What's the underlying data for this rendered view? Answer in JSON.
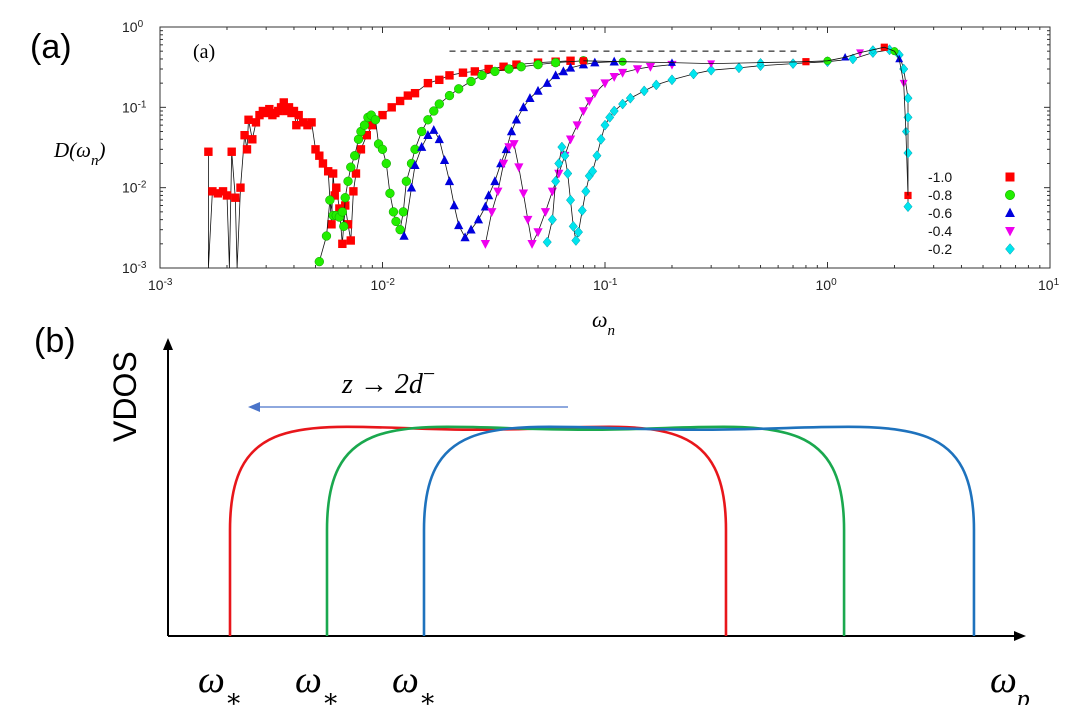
{
  "panel_a_label": "(a)",
  "panel_b_label": "(b)",
  "chart_data": [
    {
      "type": "scatter",
      "panel_label": "(a)",
      "xscale": "log",
      "yscale": "log",
      "xlim": [
        0.001,
        10
      ],
      "ylim": [
        0.001,
        1
      ],
      "xticks": [
        {
          "value": 0.001,
          "base": "10",
          "exp": "-3"
        },
        {
          "value": 0.01,
          "base": "10",
          "exp": "-2"
        },
        {
          "value": 0.1,
          "base": "10",
          "exp": "-1"
        },
        {
          "value": 1,
          "base": "10",
          "exp": "0"
        },
        {
          "value": 10,
          "base": "10",
          "exp": "1"
        }
      ],
      "yticks": [
        {
          "value": 0.001,
          "base": "10",
          "exp": "-3"
        },
        {
          "value": 0.01,
          "base": "10",
          "exp": "-2"
        },
        {
          "value": 0.1,
          "base": "10",
          "exp": "-1"
        },
        {
          "value": 1,
          "base": "10",
          "exp": "0"
        }
      ],
      "xlabel": {
        "main": "ω",
        "sub": "n"
      },
      "ylabel": {
        "main": "D(ω",
        "sub": "n",
        "close": ")"
      },
      "plateau_line": {
        "x": [
          0.02,
          0.75
        ],
        "y": 0.5,
        "style": "dashed"
      },
      "legend_position": "right",
      "series": [
        {
          "name": "-1.0",
          "color": "#ff0000",
          "marker": "square",
          "points": [
            [
              0.00165,
              0.028
            ],
            [
              0.00165,
              0.001
            ],
            [
              0.00172,
              0.009
            ],
            [
              0.00182,
              0.0085
            ],
            [
              0.00192,
              0.009
            ],
            [
              0.002,
              0.008
            ],
            [
              0.00205,
              0.001
            ],
            [
              0.0021,
              0.028
            ],
            [
              0.00218,
              0.0075
            ],
            [
              0.00222,
              0.001
            ],
            [
              0.0023,
              0.01
            ],
            [
              0.0024,
              0.045
            ],
            [
              0.00246,
              0.03
            ],
            [
              0.0025,
              0.07
            ],
            [
              0.0026,
              0.04
            ],
            [
              0.0027,
              0.065
            ],
            [
              0.0028,
              0.08
            ],
            [
              0.0029,
              0.09
            ],
            [
              0.003,
              0.085
            ],
            [
              0.0031,
              0.095
            ],
            [
              0.0032,
              0.08
            ],
            [
              0.0033,
              0.085
            ],
            [
              0.0034,
              0.09
            ],
            [
              0.0035,
              0.1
            ],
            [
              0.0036,
              0.115
            ],
            [
              0.0037,
              0.09
            ],
            [
              0.0038,
              0.1
            ],
            [
              0.0039,
              0.085
            ],
            [
              0.004,
              0.09
            ],
            [
              0.0041,
              0.06
            ],
            [
              0.0042,
              0.08
            ],
            [
              0.0044,
              0.065
            ],
            [
              0.0046,
              0.06
            ],
            [
              0.0048,
              0.065
            ],
            [
              0.005,
              0.03
            ],
            [
              0.0052,
              0.025
            ],
            [
              0.0054,
              0.02
            ],
            [
              0.0057,
              0.016
            ],
            [
              0.0059,
              0.0035
            ],
            [
              0.006,
              0.015
            ],
            [
              0.0061,
              0.008
            ],
            [
              0.0062,
              0.01
            ],
            [
              0.0064,
              0.0055
            ],
            [
              0.0066,
              0.002
            ],
            [
              0.0068,
              0.006
            ],
            [
              0.007,
              0.0035
            ],
            [
              0.0072,
              0.0022
            ],
            [
              0.0074,
              0.009
            ],
            [
              0.0076,
              0.015
            ],
            [
              0.008,
              0.03
            ],
            [
              0.0085,
              0.045
            ],
            [
              0.009,
              0.06
            ],
            [
              0.01,
              0.08
            ],
            [
              0.011,
              0.1
            ],
            [
              0.012,
              0.12
            ],
            [
              0.013,
              0.14
            ],
            [
              0.014,
              0.15
            ],
            [
              0.016,
              0.2
            ],
            [
              0.018,
              0.22
            ],
            [
              0.02,
              0.25
            ],
            [
              0.023,
              0.27
            ],
            [
              0.026,
              0.28
            ],
            [
              0.03,
              0.3
            ],
            [
              0.035,
              0.32
            ],
            [
              0.04,
              0.34
            ],
            [
              0.05,
              0.36
            ],
            [
              0.06,
              0.37
            ],
            [
              0.07,
              0.38
            ]
          ]
        },
        {
          "name": "-0.8",
          "color": "#22ee00",
          "marker": "circle",
          "points": [
            [
              0.0052,
              0.0012
            ],
            [
              0.0056,
              0.0025
            ],
            [
              0.0058,
              0.007
            ],
            [
              0.006,
              0.0045
            ],
            [
              0.0062,
              0.0045
            ],
            [
              0.0064,
              0.0043
            ],
            [
              0.0066,
              0.005
            ],
            [
              0.0067,
              0.0033
            ],
            [
              0.0068,
              0.0075
            ],
            [
              0.007,
              0.012
            ],
            [
              0.0072,
              0.018
            ],
            [
              0.0075,
              0.025
            ],
            [
              0.0078,
              0.04
            ],
            [
              0.008,
              0.05
            ],
            [
              0.0083,
              0.06
            ],
            [
              0.0086,
              0.075
            ],
            [
              0.0089,
              0.08
            ],
            [
              0.0093,
              0.07
            ],
            [
              0.0096,
              0.035
            ],
            [
              0.01,
              0.03
            ],
            [
              0.0104,
              0.02
            ],
            [
              0.0108,
              0.0085
            ],
            [
              0.0112,
              0.005
            ],
            [
              0.0115,
              0.0038
            ],
            [
              0.012,
              0.003
            ],
            [
              0.0124,
              0.005
            ],
            [
              0.0128,
              0.012
            ],
            [
              0.0135,
              0.02
            ],
            [
              0.014,
              0.03
            ],
            [
              0.015,
              0.05
            ],
            [
              0.016,
              0.07
            ],
            [
              0.017,
              0.09
            ],
            [
              0.018,
              0.11
            ],
            [
              0.02,
              0.14
            ],
            [
              0.022,
              0.17
            ],
            [
              0.025,
              0.21
            ],
            [
              0.028,
              0.25
            ],
            [
              0.032,
              0.28
            ],
            [
              0.037,
              0.3
            ],
            [
              0.042,
              0.32
            ],
            [
              0.05,
              0.34
            ],
            [
              0.06,
              0.36
            ],
            [
              0.08,
              0.38
            ]
          ]
        },
        {
          "name": "-0.6",
          "color": "#0000dd",
          "marker": "triangle-up",
          "points": [
            [
              0.0125,
              0.0025
            ],
            [
              0.0135,
              0.01
            ],
            [
              0.014,
              0.019
            ],
            [
              0.015,
              0.032
            ],
            [
              0.016,
              0.045
            ],
            [
              0.017,
              0.052
            ],
            [
              0.018,
              0.04
            ],
            [
              0.019,
              0.022
            ],
            [
              0.02,
              0.012
            ],
            [
              0.021,
              0.006
            ],
            [
              0.022,
              0.0034
            ],
            [
              0.0235,
              0.0024
            ],
            [
              0.025,
              0.003
            ],
            [
              0.027,
              0.004
            ],
            [
              0.029,
              0.0058
            ],
            [
              0.03,
              0.008
            ],
            [
              0.032,
              0.012
            ],
            [
              0.034,
              0.02
            ],
            [
              0.036,
              0.03
            ],
            [
              0.038,
              0.05
            ],
            [
              0.04,
              0.07
            ],
            [
              0.043,
              0.1
            ],
            [
              0.046,
              0.13
            ],
            [
              0.05,
              0.16
            ],
            [
              0.055,
              0.2
            ],
            [
              0.06,
              0.25
            ],
            [
              0.065,
              0.28
            ],
            [
              0.07,
              0.31
            ],
            [
              0.08,
              0.34
            ],
            [
              0.09,
              0.36
            ],
            [
              0.11,
              0.37
            ]
          ]
        },
        {
          "name": "-0.4",
          "color": "#ee00ee",
          "marker": "triangle-down",
          "points": [
            [
              0.029,
              0.002
            ],
            [
              0.031,
              0.005
            ],
            [
              0.033,
              0.009
            ],
            [
              0.035,
              0.02
            ],
            [
              0.037,
              0.032
            ],
            [
              0.039,
              0.035
            ],
            [
              0.041,
              0.018
            ],
            [
              0.043,
              0.0085
            ],
            [
              0.045,
              0.004
            ],
            [
              0.047,
              0.002
            ],
            [
              0.05,
              0.0028
            ],
            [
              0.054,
              0.005
            ],
            [
              0.058,
              0.009
            ],
            [
              0.062,
              0.015
            ],
            [
              0.066,
              0.025
            ],
            [
              0.07,
              0.04
            ],
            [
              0.075,
              0.06
            ],
            [
              0.08,
              0.09
            ],
            [
              0.085,
              0.12
            ],
            [
              0.09,
              0.15
            ],
            [
              0.1,
              0.2
            ],
            [
              0.11,
              0.24
            ],
            [
              0.12,
              0.27
            ],
            [
              0.14,
              0.3
            ],
            [
              0.16,
              0.32
            ],
            [
              0.2,
              0.34
            ]
          ]
        },
        {
          "name": "-0.2",
          "color": "#00e5ee",
          "marker": "diamond",
          "points": [
            [
              0.055,
              0.0021
            ],
            [
              0.058,
              0.004
            ],
            [
              0.06,
              0.012
            ],
            [
              0.062,
              0.02
            ],
            [
              0.064,
              0.032
            ],
            [
              0.066,
              0.025
            ],
            [
              0.068,
              0.015
            ],
            [
              0.07,
              0.007
            ],
            [
              0.072,
              0.0033
            ],
            [
              0.074,
              0.0022
            ],
            [
              0.076,
              0.0028
            ],
            [
              0.079,
              0.0052
            ],
            [
              0.082,
              0.009
            ],
            [
              0.085,
              0.014
            ],
            [
              0.088,
              0.016
            ],
            [
              0.092,
              0.025
            ],
            [
              0.096,
              0.04
            ],
            [
              0.1,
              0.06
            ],
            [
              0.105,
              0.075
            ],
            [
              0.11,
              0.09
            ],
            [
              0.12,
              0.11
            ],
            [
              0.13,
              0.13
            ],
            [
              0.15,
              0.16
            ],
            [
              0.17,
              0.19
            ],
            [
              0.2,
              0.22
            ],
            [
              0.25,
              0.26
            ],
            [
              0.3,
              0.29
            ],
            [
              0.4,
              0.31
            ],
            [
              0.5,
              0.33
            ],
            [
              0.7,
              0.35
            ],
            [
              1.0,
              0.37
            ],
            [
              1.3,
              0.4
            ],
            [
              1.6,
              0.48
            ],
            [
              1.9,
              0.52
            ],
            [
              2.1,
              0.45
            ],
            [
              2.2,
              0.3
            ],
            [
              2.3,
              0.13
            ],
            [
              2.3,
              0.075
            ],
            [
              2.3,
              0.027
            ],
            [
              2.3,
              0.0058
            ]
          ]
        }
      ],
      "common_high_branch": [
        [
          0.08,
          0.38
        ],
        [
          0.12,
          0.37
        ],
        [
          0.2,
          0.36
        ],
        [
          0.3,
          0.35
        ],
        [
          0.5,
          0.36
        ],
        [
          0.8,
          0.37
        ],
        [
          1.0,
          0.38
        ],
        [
          1.2,
          0.42
        ],
        [
          1.4,
          0.48
        ],
        [
          1.6,
          0.52
        ],
        [
          1.8,
          0.56
        ],
        [
          2.0,
          0.5
        ],
        [
          2.1,
          0.4
        ],
        [
          2.2,
          0.2
        ],
        [
          2.25,
          0.05
        ],
        [
          2.3,
          0.008
        ]
      ]
    },
    {
      "type": "line",
      "panel_label": "(b)",
      "ylabel": "VDOS",
      "xlabel": {
        "main": "ω",
        "sub": "p"
      },
      "arrow_label": {
        "text": "z → 2d",
        "sup": "−"
      },
      "x_markers": [
        {
          "main": "ω",
          "sub": "∗"
        },
        {
          "main": "ω",
          "sub": "∗"
        },
        {
          "main": "ω",
          "sub": "∗"
        }
      ],
      "series": [
        {
          "name": "red",
          "color": "#e8161b",
          "x_start": 0.0,
          "x_end": 0.42,
          "height": 0.55
        },
        {
          "name": "green",
          "color": "#1aa84e",
          "x_start": 0.11,
          "x_end": 0.52,
          "height": 0.55
        },
        {
          "name": "blue",
          "color": "#1e72bd",
          "x_start": 0.22,
          "x_end": 0.63,
          "height": 0.55
        }
      ]
    }
  ]
}
